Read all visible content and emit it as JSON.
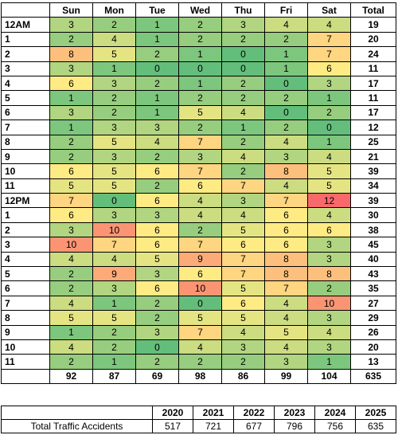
{
  "table": {
    "header": [
      "Sun",
      "Mon",
      "Tue",
      "Wed",
      "Thu",
      "Fri",
      "Sat",
      "Total"
    ],
    "rows": [
      {
        "label": "12AM",
        "cells": [
          3,
          2,
          1,
          2,
          3,
          4,
          4
        ],
        "total": 19
      },
      {
        "label": "1",
        "cells": [
          2,
          4,
          1,
          2,
          2,
          2,
          7
        ],
        "total": 20
      },
      {
        "label": "2",
        "cells": [
          8,
          5,
          2,
          1,
          0,
          1,
          7
        ],
        "total": 24
      },
      {
        "label": "3",
        "cells": [
          3,
          1,
          0,
          0,
          0,
          1,
          6
        ],
        "total": 11
      },
      {
        "label": "4",
        "cells": [
          6,
          3,
          2,
          1,
          2,
          0,
          3
        ],
        "total": 17
      },
      {
        "label": "5",
        "cells": [
          1,
          2,
          1,
          2,
          2,
          2,
          1
        ],
        "total": 11
      },
      {
        "label": "6",
        "cells": [
          3,
          2,
          1,
          5,
          4,
          0,
          2
        ],
        "total": 17
      },
      {
        "label": "7",
        "cells": [
          1,
          3,
          3,
          2,
          1,
          2,
          0
        ],
        "total": 12
      },
      {
        "label": "8",
        "cells": [
          2,
          5,
          4,
          7,
          2,
          4,
          1
        ],
        "total": 25
      },
      {
        "label": "9",
        "cells": [
          2,
          3,
          2,
          3,
          4,
          3,
          4
        ],
        "total": 21
      },
      {
        "label": "10",
        "cells": [
          6,
          5,
          6,
          7,
          2,
          8,
          5
        ],
        "total": 39
      },
      {
        "label": "11",
        "cells": [
          5,
          5,
          2,
          6,
          7,
          4,
          5
        ],
        "total": 34
      },
      {
        "label": "12PM",
        "cells": [
          7,
          0,
          6,
          4,
          3,
          7,
          12
        ],
        "total": 39
      },
      {
        "label": "1",
        "cells": [
          6,
          3,
          3,
          4,
          4,
          6,
          4
        ],
        "total": 30
      },
      {
        "label": "2",
        "cells": [
          3,
          10,
          6,
          2,
          5,
          6,
          6
        ],
        "total": 38
      },
      {
        "label": "3",
        "cells": [
          10,
          7,
          6,
          7,
          6,
          6,
          3
        ],
        "total": 45
      },
      {
        "label": "4",
        "cells": [
          4,
          4,
          5,
          9,
          7,
          8,
          3
        ],
        "total": 40
      },
      {
        "label": "5",
        "cells": [
          2,
          9,
          3,
          6,
          7,
          8,
          8
        ],
        "total": 43
      },
      {
        "label": "6",
        "cells": [
          2,
          3,
          6,
          10,
          5,
          7,
          2
        ],
        "total": 35
      },
      {
        "label": "7",
        "cells": [
          4,
          1,
          2,
          0,
          6,
          4,
          10
        ],
        "total": 27
      },
      {
        "label": "8",
        "cells": [
          5,
          5,
          2,
          5,
          5,
          4,
          3
        ],
        "total": 29
      },
      {
        "label": "9",
        "cells": [
          1,
          2,
          3,
          7,
          4,
          5,
          4
        ],
        "total": 26
      },
      {
        "label": "10",
        "cells": [
          4,
          2,
          0,
          4,
          3,
          4,
          3
        ],
        "total": 20
      },
      {
        "label": "11",
        "cells": [
          2,
          1,
          2,
          2,
          2,
          3,
          1
        ],
        "total": 13
      }
    ],
    "footer": {
      "cells": [
        92,
        87,
        69,
        98,
        86,
        99,
        104
      ],
      "total": 635
    }
  },
  "summary": {
    "years": [
      2020,
      2021,
      2022,
      2023,
      2024,
      2025
    ],
    "label": "Total Traffic Accidents",
    "values": [
      517,
      721,
      677,
      796,
      756,
      635
    ]
  }
}
